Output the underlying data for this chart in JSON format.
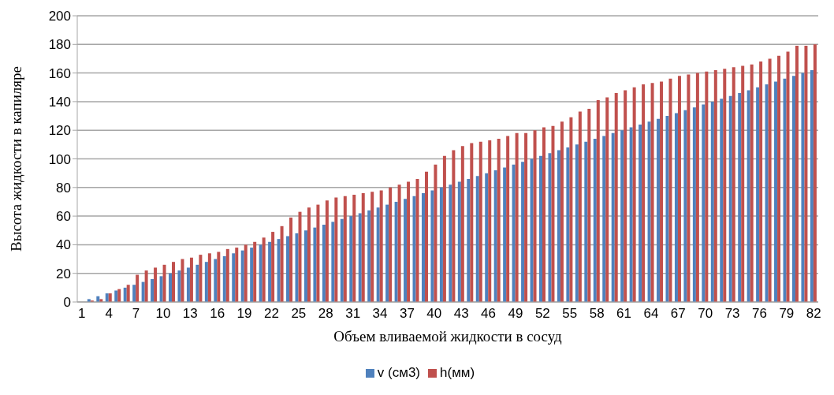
{
  "chart_data": {
    "type": "bar",
    "xlabel": "Объем вливаемой жидкости в сосуд",
    "ylabel": "Высота жидкости в капиляре",
    "categories": [
      "1",
      null,
      null,
      "4",
      null,
      null,
      "7",
      null,
      null,
      "10",
      null,
      null,
      "13",
      null,
      null,
      "16",
      null,
      null,
      "19",
      null,
      null,
      "22",
      null,
      null,
      "25",
      null,
      null,
      "28",
      null,
      null,
      "31",
      null,
      null,
      "34",
      null,
      null,
      "37",
      null,
      null,
      "40",
      null,
      null,
      "43",
      null,
      null,
      "46",
      null,
      null,
      "49",
      null,
      null,
      "52",
      null,
      null,
      "55",
      null,
      null,
      "58",
      null,
      null,
      "61",
      null,
      null,
      "64",
      null,
      null,
      "67",
      null,
      null,
      "70",
      null,
      null,
      "73",
      null,
      null,
      "76",
      null,
      null,
      "79",
      null,
      null,
      "82"
    ],
    "series": [
      {
        "name": "v (см3)",
        "color": "#4f81bd",
        "values": [
          0,
          2,
          4,
          6,
          8,
          10,
          12,
          14,
          16,
          18,
          20,
          22,
          24,
          26,
          28,
          30,
          32,
          34,
          36,
          38,
          40,
          42,
          44,
          46,
          48,
          50,
          52,
          54,
          56,
          58,
          60,
          62,
          64,
          66,
          68,
          70,
          72,
          74,
          76,
          78,
          80,
          82,
          84,
          86,
          88,
          90,
          92,
          94,
          96,
          98,
          100,
          102,
          104,
          106,
          108,
          110,
          112,
          114,
          116,
          118,
          120,
          122,
          124,
          126,
          128,
          130,
          132,
          134,
          136,
          138,
          140,
          142,
          144,
          146,
          148,
          150,
          152,
          154,
          156,
          158,
          160,
          162
        ]
      },
      {
        "name": "h(мм)",
        "color": "#c0504d",
        "values": [
          0,
          1,
          2,
          6,
          9,
          12,
          19,
          22,
          24,
          26,
          28,
          30,
          31,
          33,
          34,
          35,
          37,
          38,
          40,
          42,
          45,
          49,
          53,
          59,
          63,
          66,
          68,
          71,
          73,
          74,
          75,
          76,
          77,
          78,
          80,
          82,
          84,
          86,
          91,
          96,
          102,
          106,
          109,
          111,
          112,
          113,
          114,
          116,
          118,
          118,
          120,
          122,
          123,
          126,
          129,
          133,
          135,
          141,
          143,
          146,
          148,
          150,
          152,
          153,
          154,
          156,
          158,
          159,
          160,
          161,
          162,
          163,
          164,
          165,
          166,
          168,
          170,
          172,
          175,
          179,
          179,
          180
        ]
      }
    ],
    "ylim": [
      0,
      200
    ],
    "yticks": [
      0,
      20,
      40,
      60,
      80,
      100,
      120,
      140,
      160,
      180,
      200
    ],
    "grid": "y",
    "legend": "bottom"
  }
}
